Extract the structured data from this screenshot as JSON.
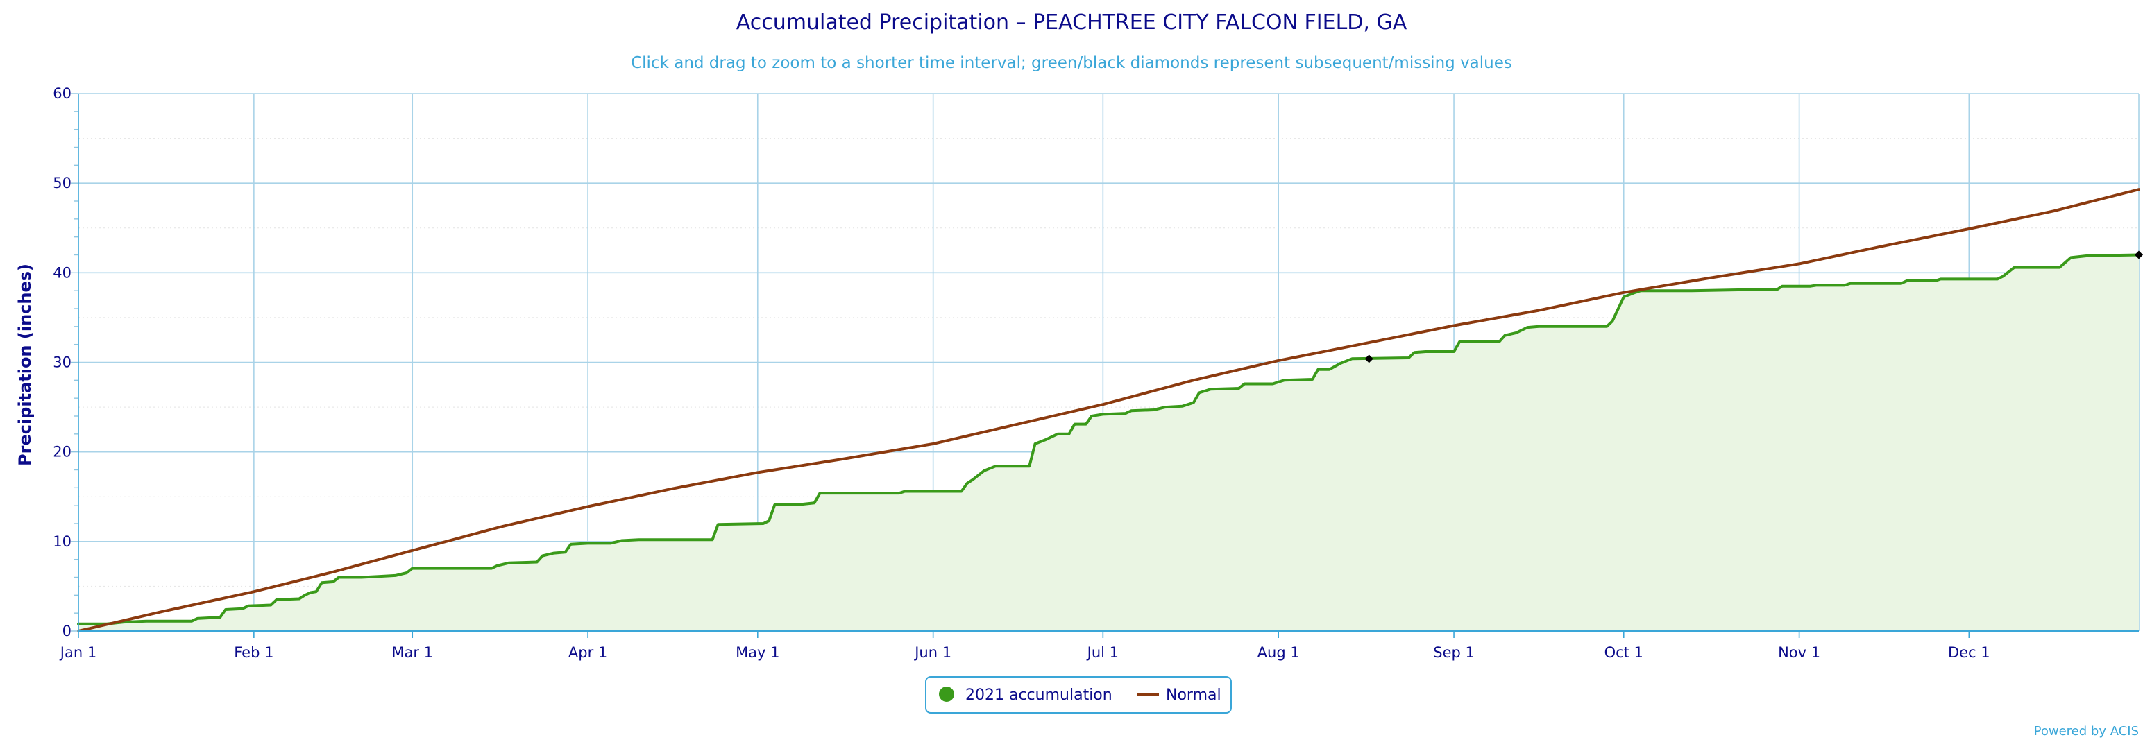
{
  "chart_data": {
    "type": "line",
    "title": "Accumulated Precipitation – PEACHTREE CITY FALCON FIELD, GA",
    "subtitle": "Click and drag to zoom to a shorter time interval; green/black diamonds represent subsequent/missing values",
    "ylabel": "Precipitation (inches)",
    "xlabel": "",
    "ylim": [
      0,
      60
    ],
    "y_ticks": [
      0,
      10,
      20,
      30,
      40,
      50,
      60
    ],
    "x_domain_days": [
      0,
      364
    ],
    "x_ticks": [
      {
        "label": "Jan 1",
        "day": 0
      },
      {
        "label": "Feb 1",
        "day": 31
      },
      {
        "label": "Mar 1",
        "day": 59
      },
      {
        "label": "Apr 1",
        "day": 90
      },
      {
        "label": "May 1",
        "day": 120
      },
      {
        "label": "Jun 1",
        "day": 151
      },
      {
        "label": "Jul 1",
        "day": 181
      },
      {
        "label": "Aug 1",
        "day": 212
      },
      {
        "label": "Sep 1",
        "day": 243
      },
      {
        "label": "Oct 1",
        "day": 273
      },
      {
        "label": "Nov 1",
        "day": 304
      },
      {
        "label": "Dec 1",
        "day": 334
      }
    ],
    "grid": true,
    "legend_position": "bottom-center",
    "series": [
      {
        "name": "2021 accumulation",
        "color": "#3a9a1a",
        "fill": "#eaf5e3",
        "points": [
          [
            0,
            0.8
          ],
          [
            5,
            0.8
          ],
          [
            8,
            1.0
          ],
          [
            12,
            1.1
          ],
          [
            20,
            1.1
          ],
          [
            21,
            1.4
          ],
          [
            24,
            1.5
          ],
          [
            25,
            1.5
          ],
          [
            26,
            2.4
          ],
          [
            29,
            2.5
          ],
          [
            30,
            2.8
          ],
          [
            34,
            2.9
          ],
          [
            35,
            3.5
          ],
          [
            39,
            3.6
          ],
          [
            40,
            4.0
          ],
          [
            41,
            4.3
          ],
          [
            42,
            4.4
          ],
          [
            43,
            5.4
          ],
          [
            45,
            5.5
          ],
          [
            46,
            6.0
          ],
          [
            50,
            6.0
          ],
          [
            53,
            6.1
          ],
          [
            56,
            6.2
          ],
          [
            58,
            6.5
          ],
          [
            59,
            7.0
          ],
          [
            67,
            7.0
          ],
          [
            73,
            7.0
          ],
          [
            74,
            7.3
          ],
          [
            76,
            7.6
          ],
          [
            81,
            7.7
          ],
          [
            82,
            8.4
          ],
          [
            84,
            8.7
          ],
          [
            86,
            8.8
          ],
          [
            87,
            9.7
          ],
          [
            90,
            9.8
          ],
          [
            94,
            9.8
          ],
          [
            96,
            10.1
          ],
          [
            99,
            10.2
          ],
          [
            112,
            10.2
          ],
          [
            113,
            11.9
          ],
          [
            121,
            12.0
          ],
          [
            122,
            12.3
          ],
          [
            123,
            14.1
          ],
          [
            127,
            14.1
          ],
          [
            130,
            14.3
          ],
          [
            131,
            15.4
          ],
          [
            141,
            15.4
          ],
          [
            145,
            15.4
          ],
          [
            146,
            15.6
          ],
          [
            156,
            15.6
          ],
          [
            157,
            16.5
          ],
          [
            158,
            16.9
          ],
          [
            160,
            17.9
          ],
          [
            162,
            18.4
          ],
          [
            168,
            18.4
          ],
          [
            169,
            20.9
          ],
          [
            171,
            21.4
          ],
          [
            173,
            22.0
          ],
          [
            175,
            22.0
          ],
          [
            176,
            23.1
          ],
          [
            178,
            23.1
          ],
          [
            179,
            24.0
          ],
          [
            181,
            24.2
          ],
          [
            185,
            24.3
          ],
          [
            186,
            24.6
          ],
          [
            190,
            24.7
          ],
          [
            192,
            25.0
          ],
          [
            195,
            25.1
          ],
          [
            197,
            25.5
          ],
          [
            198,
            26.6
          ],
          [
            200,
            27.0
          ],
          [
            205,
            27.1
          ],
          [
            206,
            27.6
          ],
          [
            211,
            27.6
          ],
          [
            213,
            28.0
          ],
          [
            218,
            28.1
          ],
          [
            219,
            29.2
          ],
          [
            221,
            29.2
          ],
          [
            223,
            29.9
          ],
          [
            225,
            30.4
          ],
          [
            235,
            30.5
          ],
          [
            236,
            31.1
          ],
          [
            238,
            31.2
          ],
          [
            243,
            31.2
          ],
          [
            244,
            32.3
          ],
          [
            251,
            32.3
          ],
          [
            252,
            33.0
          ],
          [
            254,
            33.3
          ],
          [
            256,
            33.9
          ],
          [
            258,
            34.0
          ],
          [
            270,
            34.0
          ],
          [
            271,
            34.6
          ],
          [
            273,
            37.3
          ],
          [
            275,
            37.8
          ],
          [
            276,
            38.0
          ],
          [
            285,
            38.0
          ],
          [
            294,
            38.1
          ],
          [
            300,
            38.1
          ],
          [
            301,
            38.5
          ],
          [
            306,
            38.5
          ],
          [
            307,
            38.6
          ],
          [
            312,
            38.6
          ],
          [
            313,
            38.8
          ],
          [
            322,
            38.8
          ],
          [
            323,
            39.1
          ],
          [
            328,
            39.1
          ],
          [
            329,
            39.3
          ],
          [
            339,
            39.3
          ],
          [
            340,
            39.6
          ],
          [
            342,
            40.6
          ],
          [
            350,
            40.6
          ],
          [
            352,
            41.7
          ],
          [
            355,
            41.9
          ],
          [
            364,
            42.0
          ]
        ],
        "markers": [
          {
            "day": 228,
            "value": 30.4,
            "color": "#000000"
          },
          {
            "day": 364,
            "value": 42.0,
            "color": "#000000"
          }
        ]
      },
      {
        "name": "Normal",
        "color": "#8b3a0f",
        "points": [
          [
            0,
            0.0
          ],
          [
            15,
            2.2
          ],
          [
            31,
            4.4
          ],
          [
            45,
            6.6
          ],
          [
            59,
            9.0
          ],
          [
            75,
            11.7
          ],
          [
            90,
            13.9
          ],
          [
            105,
            15.9
          ],
          [
            120,
            17.7
          ],
          [
            135,
            19.2
          ],
          [
            151,
            20.9
          ],
          [
            166,
            23.1
          ],
          [
            181,
            25.3
          ],
          [
            197,
            28.0
          ],
          [
            212,
            30.2
          ],
          [
            228,
            32.2
          ],
          [
            243,
            34.1
          ],
          [
            258,
            35.8
          ],
          [
            273,
            37.8
          ],
          [
            288,
            39.4
          ],
          [
            304,
            41.0
          ],
          [
            319,
            43.0
          ],
          [
            334,
            44.9
          ],
          [
            349,
            46.9
          ],
          [
            364,
            49.3
          ]
        ]
      }
    ],
    "credit": "Powered by ACIS"
  }
}
